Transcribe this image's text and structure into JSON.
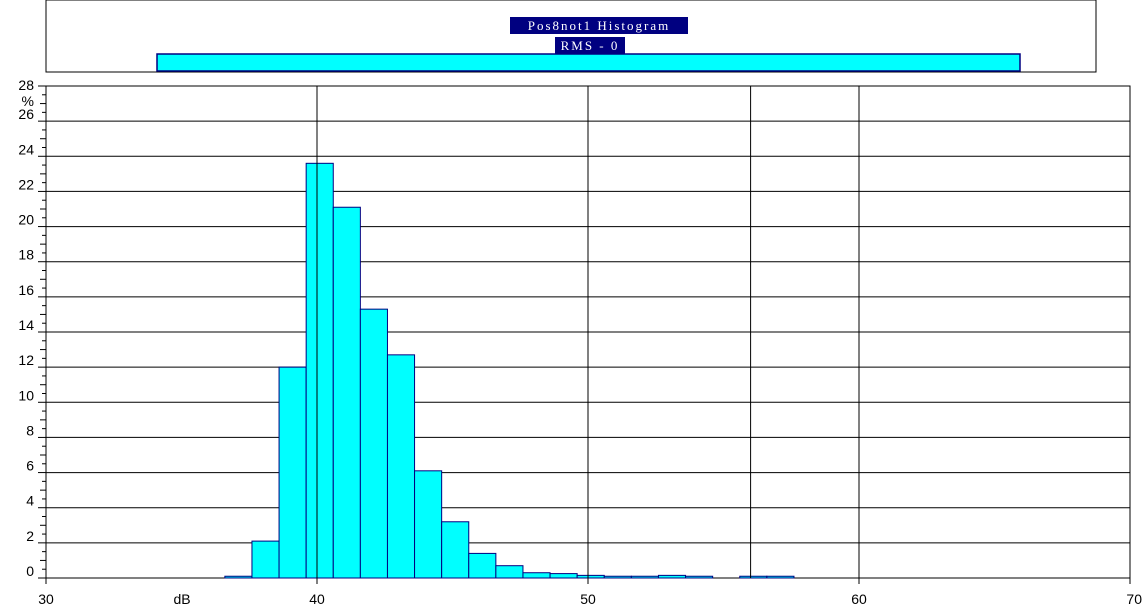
{
  "chart_data": {
    "type": "bar",
    "title": "Pos8not1 Histogram",
    "legend": {
      "series_label": "RMS - 0",
      "color": "#00ffff"
    },
    "xlabel": "dB",
    "ylabel": "%",
    "xlim": [
      30,
      70
    ],
    "ylim": [
      0,
      28
    ],
    "x_ticks": [
      "30",
      "40",
      "50",
      "60",
      "70"
    ],
    "y_ticks": [
      "0",
      "2",
      "4",
      "6",
      "8",
      "10",
      "12",
      "14",
      "16",
      "18",
      "20",
      "22",
      "24",
      "26",
      "28"
    ],
    "bin_width": 1,
    "bins": [
      {
        "start": 36.6,
        "value": 0.1
      },
      {
        "start": 37.6,
        "value": 2.1
      },
      {
        "start": 38.6,
        "value": 12.0
      },
      {
        "start": 39.6,
        "value": 23.6
      },
      {
        "start": 40.6,
        "value": 21.1
      },
      {
        "start": 41.6,
        "value": 15.3
      },
      {
        "start": 42.6,
        "value": 12.7
      },
      {
        "start": 43.6,
        "value": 6.1
      },
      {
        "start": 44.6,
        "value": 3.2
      },
      {
        "start": 45.6,
        "value": 1.4
      },
      {
        "start": 46.6,
        "value": 0.7
      },
      {
        "start": 47.6,
        "value": 0.3
      },
      {
        "start": 48.6,
        "value": 0.25
      },
      {
        "start": 49.6,
        "value": 0.15
      },
      {
        "start": 50.6,
        "value": 0.1
      },
      {
        "start": 51.6,
        "value": 0.1
      },
      {
        "start": 52.6,
        "value": 0.15
      },
      {
        "start": 53.6,
        "value": 0.1
      },
      {
        "start": 55.6,
        "value": 0.1
      },
      {
        "start": 56.6,
        "value": 0.1
      }
    ],
    "vertical_lines": [
      40,
      50,
      56,
      60
    ],
    "grid": true,
    "bar_color": "#00ffff",
    "bar_edge_color": "#000080",
    "title_bg_color": "#000080"
  }
}
